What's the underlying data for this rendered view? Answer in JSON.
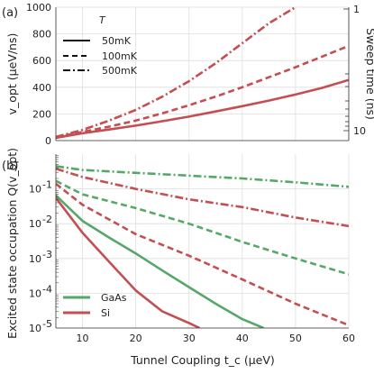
{
  "figure": {
    "panels": [
      {
        "label": "(a)",
        "ylabel": "v_opt (μeV/ns)",
        "ylabel2": "Sweep time (ns)",
        "yticks": [
          "0",
          "200",
          "400",
          "600",
          "800",
          "1000"
        ],
        "yticks2": [
          "1",
          "10"
        ],
        "legend_title": "T",
        "legend": [
          "50mK",
          "100mK",
          "500mK"
        ]
      },
      {
        "label": "(b)",
        "ylabel": "Excited state occupation Q(v_opt)",
        "xlabel": "Tunnel Coupling t_c (μeV)",
        "xticks": [
          "10",
          "20",
          "30",
          "40",
          "50",
          "60"
        ],
        "yticks": [
          "10^-1",
          "10^-2",
          "10^-3",
          "10^-4",
          "10^-5"
        ],
        "legend": [
          "GaAs",
          "Si"
        ]
      }
    ]
  },
  "chart_data": [
    {
      "type": "line",
      "title": "",
      "xlabel": "",
      "ylabel": "v_opt (μeV/ns)",
      "ylabel_right": "Sweep time (ns)",
      "xlim": [
        5,
        60
      ],
      "ylim": [
        0,
        1000
      ],
      "grid": true,
      "legend_title": "T",
      "legend_position": "top-left",
      "series": [
        {
          "name": "50mK",
          "style": "solid",
          "color": "#c44e52",
          "x": [
            5,
            10,
            15,
            20,
            25,
            30,
            35,
            40,
            45,
            50,
            55,
            60
          ],
          "y": [
            20,
            55,
            83,
            112,
            145,
            180,
            218,
            258,
            300,
            345,
            395,
            455
          ]
        },
        {
          "name": "100mK",
          "style": "dashed",
          "color": "#c44e52",
          "x": [
            5,
            10,
            15,
            20,
            25,
            30,
            35,
            40,
            45,
            50,
            55,
            60
          ],
          "y": [
            24,
            65,
            105,
            150,
            205,
            265,
            330,
            400,
            475,
            550,
            630,
            710
          ]
        },
        {
          "name": "500mK",
          "style": "dashdot",
          "color": "#c44e52",
          "x": [
            5,
            10,
            15,
            20,
            25,
            30,
            35,
            40,
            45,
            50
          ],
          "y": [
            28,
            80,
            150,
            230,
            330,
            445,
            580,
            730,
            880,
            1000
          ]
        }
      ]
    },
    {
      "type": "line",
      "title": "",
      "xlabel": "Tunnel Coupling t_c (μeV)",
      "ylabel": "Excited state occupation Q(v_opt)",
      "xlim": [
        5,
        60
      ],
      "ylim": [
        1e-05,
        1
      ],
      "yscale": "log",
      "grid": true,
      "legend_position": "bottom-left",
      "series": [
        {
          "name": "GaAs",
          "style": "dashdot",
          "color": "#55a868",
          "x": [
            5,
            10,
            20,
            30,
            40,
            50,
            60
          ],
          "y": [
            0.45,
            0.35,
            0.29,
            0.24,
            0.2,
            0.155,
            0.115
          ]
        },
        {
          "name": "Si",
          "style": "dashdot",
          "color": "#c44e52",
          "x": [
            5,
            10,
            20,
            30,
            40,
            50,
            60
          ],
          "y": [
            0.38,
            0.22,
            0.1,
            0.05,
            0.03,
            0.015,
            0.0085
          ]
        },
        {
          "name": "GaAs",
          "style": "dashed",
          "color": "#55a868",
          "x": [
            5,
            10,
            20,
            30,
            40,
            50,
            60
          ],
          "y": [
            0.17,
            0.07,
            0.028,
            0.01,
            0.003,
            0.001,
            0.00035
          ]
        },
        {
          "name": "Si",
          "style": "dashed",
          "color": "#c44e52",
          "x": [
            5,
            10,
            20,
            30,
            40,
            50,
            60
          ],
          "y": [
            0.14,
            0.035,
            0.005,
            0.0012,
            0.00025,
            5e-05,
            1.2e-05
          ]
        },
        {
          "name": "GaAs",
          "style": "solid",
          "color": "#55a868",
          "x": [
            5,
            10,
            15,
            20,
            25,
            30,
            35,
            40,
            44
          ],
          "y": [
            0.065,
            0.012,
            0.004,
            0.0014,
            0.00045,
            0.00015,
            5e-05,
            1.8e-05,
            1e-05
          ]
        },
        {
          "name": "Si",
          "style": "solid",
          "color": "#c44e52",
          "x": [
            5,
            10,
            15,
            20,
            25,
            30,
            32
          ],
          "y": [
            0.055,
            0.0055,
            0.0008,
            0.00012,
            3e-05,
            1.4e-05,
            1e-05
          ]
        }
      ]
    }
  ]
}
